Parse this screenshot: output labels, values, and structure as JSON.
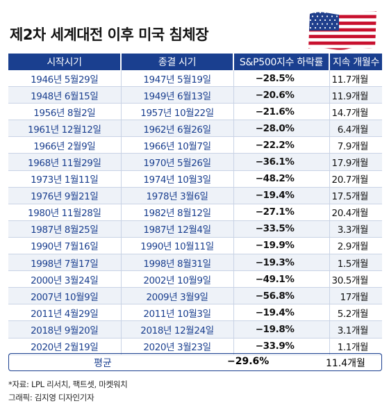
{
  "title": "제2차 세계대전 이후 미국 침체장",
  "headers": [
    "시작시기",
    "종결 시기",
    "S&P500지수 하락률",
    "지속 개월수"
  ],
  "rows": [
    [
      "1946년 5월29일",
      "1947년 5월19일",
      "−28.5%",
      "11.7개월"
    ],
    [
      "1948년 6월15일",
      "1949년 6월13일",
      "−20.6%",
      "11.9개월"
    ],
    [
      "1956년 8월2일",
      "1957년 10월22일",
      "−21.6%",
      "14.7개월"
    ],
    [
      "1961년 12월12일",
      "1962년 6월26일",
      "−28.0%",
      "6.4개월"
    ],
    [
      "1966년 2월9일",
      "1966년 10월7일",
      "−22.2%",
      "7.9개월"
    ],
    [
      "1968년 11월29일",
      "1970년 5월26일",
      "−36.1%",
      "17.9개월"
    ],
    [
      "1973년 1월11일",
      "1974년 10월3일",
      "−48.2%",
      "20.7개월"
    ],
    [
      "1976년 9월21일",
      "1978년 3월6일",
      "−19.4%",
      "17.5개월"
    ],
    [
      "1980년 11월28일",
      "1982년 8월12일",
      "−27.1%",
      "20.4개월"
    ],
    [
      "1987년 8월25일",
      "1987년 12월4일",
      "−33.5%",
      "3.3개월"
    ],
    [
      "1990년 7월16일",
      "1990년 10월11일",
      "−19.9%",
      "2.9개월"
    ],
    [
      "1998년 7월17일",
      "1998년 8월31일",
      "−19.3%",
      "1.5개월"
    ],
    [
      "2000년 3월24일",
      "2002년 10월9일",
      "−49.1%",
      "30.5개월"
    ],
    [
      "2007년 10월9일",
      "2009년 3월9일",
      "−56.8%",
      "17개월"
    ],
    [
      "2011년 4월29일",
      "2011년 10월3일",
      "−19.4%",
      "5.2개월"
    ],
    [
      "2018년 9월20일",
      "2018년 12월24일",
      "−19.8%",
      "3.1개월"
    ],
    [
      "2020년 2월19일",
      "2020년 3월23일",
      "−33.9%",
      "1.1개월"
    ]
  ],
  "average": {
    "label": "평균",
    "decline": "−29.6%",
    "duration": "11.4개월"
  },
  "source": "*자료: LPL 리서치, 팩트셋, 마켓워치",
  "credit": "그래픽: 김지영 디자인기자",
  "colors": {
    "header": "#1a3f8f",
    "text_blue": "#1a3f8f",
    "row_alt": "#eef2f8"
  },
  "chart_data": {
    "type": "table",
    "title": "제2차 세계대전 이후 미국 침체장",
    "columns": [
      "시작시기",
      "종결 시기",
      "S&P500지수 하락률",
      "지속 개월수"
    ],
    "decline_pct": [
      -28.5,
      -20.6,
      -21.6,
      -28.0,
      -22.2,
      -36.1,
      -48.2,
      -19.4,
      -27.1,
      -33.5,
      -19.9,
      -19.3,
      -49.1,
      -56.8,
      -19.4,
      -19.8,
      -33.9
    ],
    "duration_months": [
      11.7,
      11.9,
      14.7,
      6.4,
      7.9,
      17.9,
      20.7,
      17.5,
      20.4,
      3.3,
      2.9,
      1.5,
      30.5,
      17,
      5.2,
      3.1,
      1.1
    ],
    "average": {
      "decline_pct": -29.6,
      "duration_months": 11.4
    }
  }
}
